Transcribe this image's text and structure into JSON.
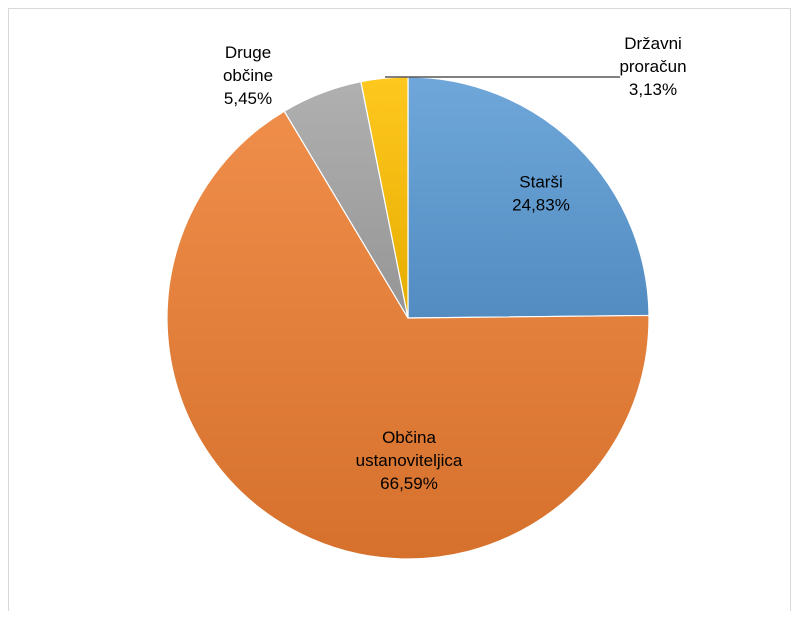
{
  "chart_data": {
    "type": "pie",
    "slices": [
      {
        "label_lines": [
          "Starši",
          "24,83%"
        ],
        "value": 24.83,
        "color": "#5b9bd5"
      },
      {
        "label_lines": [
          "Občina",
          "ustanoviteljica",
          "66,59%"
        ],
        "value": 66.59,
        "color": "#ed7d31"
      },
      {
        "label_lines": [
          "Druge",
          "občine",
          "5,45%"
        ],
        "value": 5.45,
        "color": "#a5a5a5"
      },
      {
        "label_lines": [
          "Državni",
          "proračun",
          "3,13%"
        ],
        "value": 3.13,
        "color": "#ffc000"
      }
    ],
    "start": "12 o'clock",
    "direction": "clockwise",
    "legend": "none",
    "data_labels": "category name and percentage"
  }
}
